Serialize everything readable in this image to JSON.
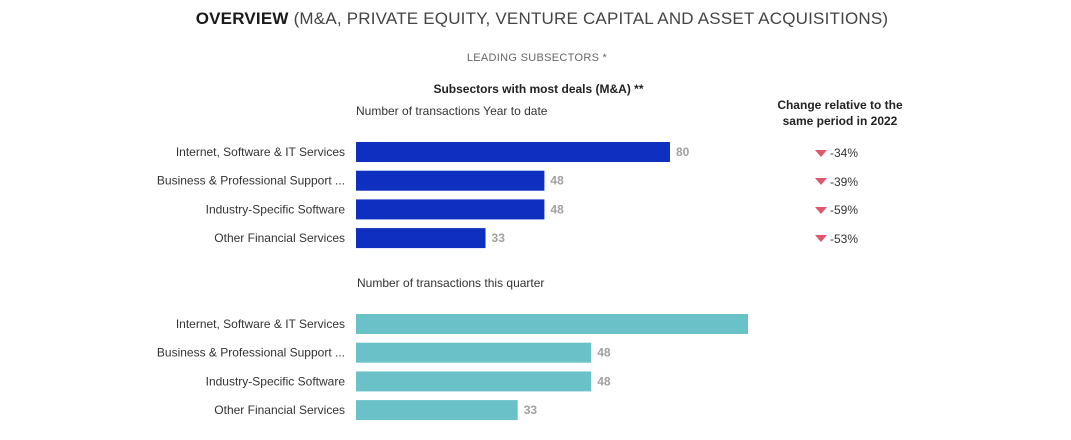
{
  "header": {
    "title_bold": "OVERVIEW",
    "title_rest": "(M&A, PRIVATE EQUITY, VENTURE CAPITAL AND ASSET ACQUISITIONS)",
    "subtitle": "LEADING SUBSECTORS *",
    "section_title": "Subsectors with most deals (M&A) **"
  },
  "change_column": {
    "header_line1": "Change relative to the",
    "header_line2": "same period in 2022",
    "values": [
      "-34%",
      "-39%",
      "-59%",
      "-53%"
    ],
    "direction": "down",
    "arrow_color": "#e0576c"
  },
  "chart_data": [
    {
      "type": "bar",
      "orientation": "horizontal",
      "title": "Number of transactions Year to date",
      "categories": [
        "Internet, Software & IT Services",
        "Business & Professional Support ...",
        "Industry-Specific Software",
        "Other Financial Services"
      ],
      "values": [
        80,
        48,
        48,
        33
      ],
      "value_labels": [
        "80",
        "48",
        "48",
        "33"
      ],
      "color": "#0f2fc0"
    },
    {
      "type": "bar",
      "orientation": "horizontal",
      "title": "Number of transactions this quarter",
      "categories": [
        "Internet, Software & IT Services",
        "Business & Professional Support ...",
        "Industry-Specific Software",
        "Other Financial Services"
      ],
      "values": [
        80,
        48,
        48,
        33
      ],
      "value_labels": [
        "",
        "48",
        "48",
        "33"
      ],
      "color": "#6ac1c8"
    }
  ]
}
